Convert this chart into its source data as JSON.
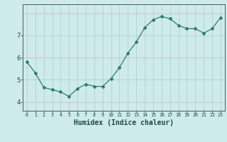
{
  "x": [
    0,
    1,
    2,
    3,
    4,
    5,
    6,
    7,
    8,
    9,
    10,
    11,
    12,
    13,
    14,
    15,
    16,
    17,
    18,
    19,
    20,
    21,
    22,
    23
  ],
  "y": [
    5.8,
    5.3,
    4.65,
    4.55,
    4.45,
    4.25,
    4.6,
    4.8,
    4.7,
    4.7,
    5.05,
    5.55,
    6.2,
    6.7,
    7.35,
    7.7,
    7.85,
    7.75,
    7.45,
    7.3,
    7.3,
    7.1,
    7.3,
    7.8
  ],
  "line_color": "#2e7d6e",
  "marker": "D",
  "marker_size": 2.0,
  "bg_color": "#ceeaea",
  "grid_color": "#add4d4",
  "grid_color_red": "#e0b8b8",
  "xlabel": "Humidex (Indice chaleur)",
  "xlabel_fontsize": 7,
  "ylabel_ticks": [
    4,
    5,
    6,
    7
  ],
  "ylim": [
    3.6,
    8.4
  ],
  "xlim": [
    -0.5,
    23.5
  ]
}
